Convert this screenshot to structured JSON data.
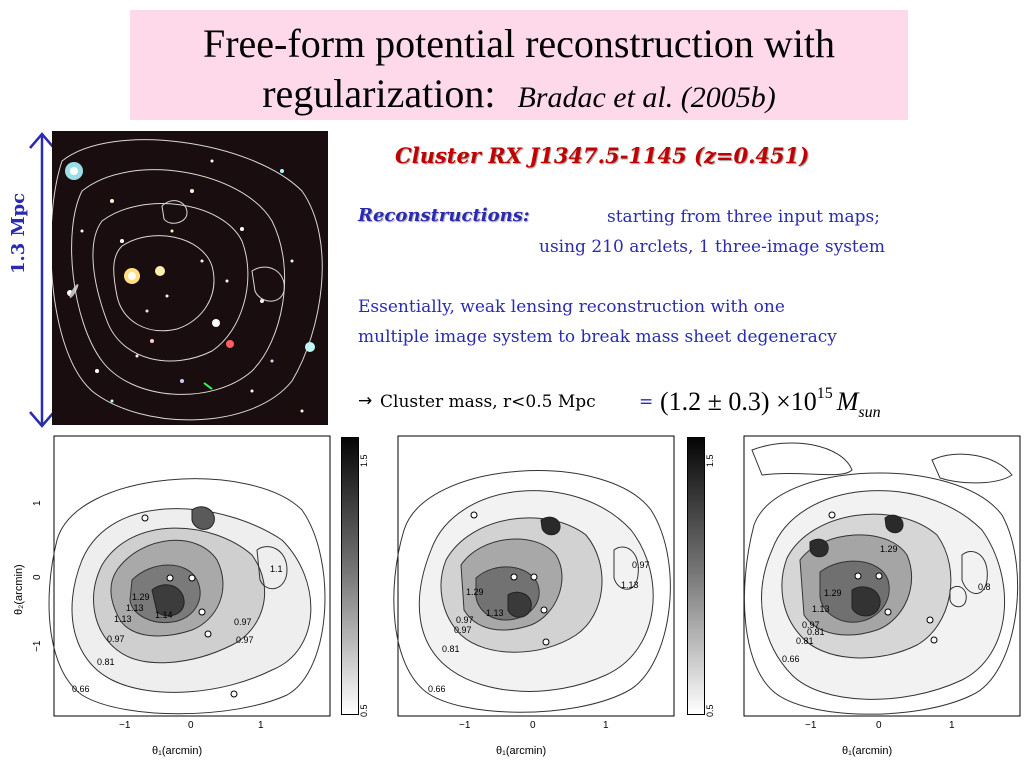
{
  "title": {
    "line1": "Free-form potential reconstruction with",
    "line2": "regularization:",
    "citation": "Bradac et al. (2005b)"
  },
  "scale": {
    "label": "1.3  Mpc"
  },
  "cluster": {
    "title": "Cluster RX J1347.5-1145    (z=0.451)"
  },
  "reconstructions": {
    "label": "Reconstructions:",
    "line1": "starting from  three input maps;",
    "line2": "using 210 arclets, 1 three-image system"
  },
  "weak": {
    "line1": "Essentially, weak lensing reconstruction with one",
    "line2": "multiple image system to break mass sheet degeneracy"
  },
  "mass": {
    "arrow": "→",
    "text": "Cluster mass,  r<0.5 Mpc",
    "eq": "=",
    "formula": "(1.2 ± 0.3) ×10",
    "exponent": "15",
    "symbol": "M",
    "subscript": "sun"
  },
  "panels": {
    "xlabel": "θ₁(arcmin)",
    "ylabel": "θ₂(arcmin)",
    "xticks": [
      "−1",
      "0",
      "1"
    ],
    "yticks": [
      "1",
      "0",
      "−1"
    ],
    "colorbar_ticks": [
      "1.5",
      "0.5"
    ],
    "panel1": {
      "contour_labels": [
        "0.66",
        "0.81",
        "0.97",
        "1.13",
        "1.29",
        "1.14",
        "1.13",
        "0.97",
        "0.97",
        "1.1"
      ]
    },
    "panel2": {
      "contour_labels": [
        "0.66",
        "0.81",
        "0.97",
        "1.13",
        "1.29",
        "0.97",
        "1.13",
        "0.97"
      ]
    },
    "panel3": {
      "contour_labels": [
        "0.66",
        "0.81",
        "0.97",
        "1.13",
        "1.29",
        "1.29",
        "0.8",
        "0.81"
      ]
    }
  }
}
